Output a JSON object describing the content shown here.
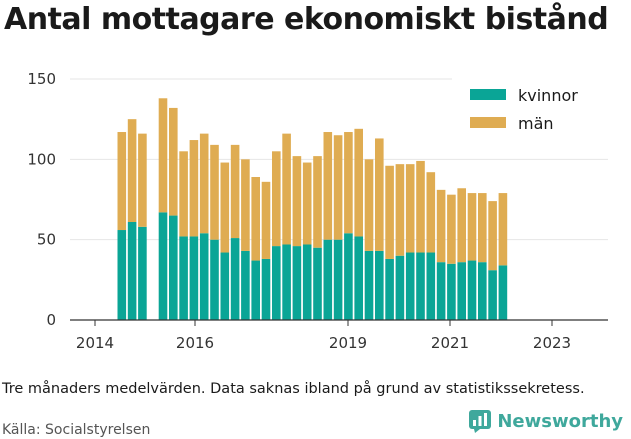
{
  "title": "Antal mottagare ekonomiskt bistånd",
  "note": "Tre månaders medelvärden. Data saknas ibland på grund av statistikssekretess.",
  "source": "Källa: Socialstyrelsen",
  "brand": {
    "name": "Newsworthy",
    "icon": "newsworthy-logo-icon"
  },
  "colors": {
    "kvinnor": "#0aa596",
    "man": "#dfac52",
    "grid": "#e6e6e6",
    "axis": "#333333"
  },
  "chart_data": {
    "type": "bar",
    "stacked": true,
    "legend_position": "top-right",
    "grid": true,
    "ylim": [
      0,
      150
    ],
    "y_ticks": [
      0,
      50,
      100,
      150
    ],
    "x_tick_labels": [
      "2014",
      "2016",
      "2019",
      "2021",
      "2023"
    ],
    "series": [
      {
        "name": "kvinnor",
        "values": [
          null,
          56,
          61,
          58,
          null,
          67,
          65,
          52,
          52,
          54,
          50,
          42,
          51,
          43,
          37,
          38,
          46,
          47,
          46,
          47,
          45,
          50,
          50,
          54,
          52,
          43,
          43,
          38,
          40,
          42,
          42,
          42,
          36,
          35,
          36,
          37,
          36,
          31,
          34
        ]
      },
      {
        "name": "män",
        "values": [
          null,
          61,
          64,
          58,
          null,
          71,
          67,
          53,
          60,
          62,
          59,
          56,
          58,
          57,
          52,
          48,
          59,
          69,
          56,
          51,
          57,
          67,
          65,
          63,
          67,
          57,
          70,
          58,
          57,
          55,
          57,
          50,
          45,
          43,
          46,
          42,
          43,
          43,
          45
        ]
      }
    ]
  }
}
